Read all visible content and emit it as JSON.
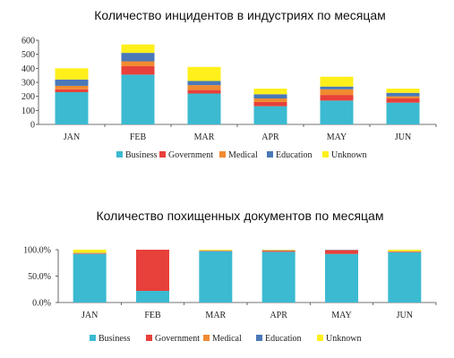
{
  "chart_data": [
    {
      "type": "bar",
      "stacked": true,
      "title": "Количество инцидентов в индустриях по месяцам",
      "xlabel": "",
      "ylabel": "",
      "ylim": [
        0,
        600
      ],
      "yticks": [
        "0",
        "100",
        "200",
        "300",
        "400",
        "500",
        "600"
      ],
      "grid": false,
      "legend_position": "bottom",
      "categories": [
        "JAN",
        "FEB",
        "MAR",
        "APR",
        "MAY",
        "JUN"
      ],
      "series": [
        {
          "name": "Business",
          "color": "#3bbad1",
          "values": [
            230,
            355,
            220,
            130,
            170,
            155
          ]
        },
        {
          "name": "Government",
          "color": "#e8403a",
          "values": [
            20,
            60,
            25,
            30,
            40,
            30
          ]
        },
        {
          "name": "Medical",
          "color": "#f08a30",
          "values": [
            25,
            35,
            35,
            25,
            40,
            15
          ]
        },
        {
          "name": "Education",
          "color": "#4a78b8",
          "values": [
            45,
            60,
            30,
            30,
            20,
            25
          ]
        },
        {
          "name": "Unknown",
          "color": "#ffef1a",
          "values": [
            80,
            60,
            100,
            40,
            70,
            30
          ]
        }
      ]
    },
    {
      "type": "bar",
      "stacked": true,
      "percent": true,
      "title": "Количество похищенных документов по месяцам",
      "xlabel": "",
      "ylabel": "",
      "ylim": [
        0,
        100
      ],
      "yticks": [
        "0.0%",
        "50.0%",
        "100.0%"
      ],
      "grid": false,
      "legend_position": "bottom",
      "categories": [
        "JAN",
        "FEB",
        "MAR",
        "APR",
        "MAY",
        "JUN"
      ],
      "series": [
        {
          "name": "Business",
          "color": "#3bbad1",
          "values": [
            92,
            22,
            97,
            96,
            92,
            95
          ]
        },
        {
          "name": "Government",
          "color": "#e8403a",
          "values": [
            1,
            78,
            0.5,
            2,
            7,
            1
          ]
        },
        {
          "name": "Medical",
          "color": "#f08a30",
          "values": [
            0.5,
            0,
            0.5,
            0.5,
            0.5,
            0.5
          ]
        },
        {
          "name": "Education",
          "color": "#4a78b8",
          "values": [
            0.5,
            0,
            0.5,
            0.5,
            0.5,
            0.5
          ]
        },
        {
          "name": "Unknown",
          "color": "#ffef1a",
          "values": [
            6,
            0,
            1.5,
            1,
            0,
            3
          ]
        }
      ]
    }
  ]
}
